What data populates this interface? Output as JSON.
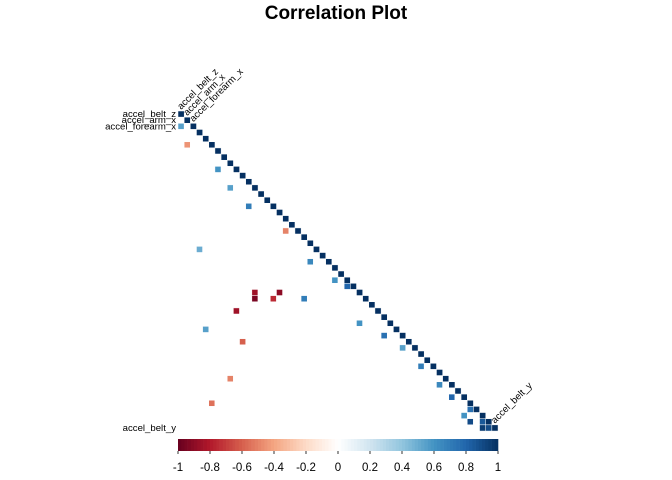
{
  "chart_data": {
    "type": "heatmap",
    "title": "Correlation Plot",
    "variables": [
      "accel_belt_z",
      "accel_arm_x",
      "accel_forearm_x",
      "",
      "",
      "",
      "",
      "",
      "",
      "",
      "",
      "",
      "",
      "",
      "",
      "",
      "",
      "",
      "",
      "",
      "",
      "",
      "",
      "",
      "",
      "",
      "",
      "",
      "",
      "",
      "",
      "",
      "",
      "",
      "",
      "",
      "",
      "",
      "",
      "",
      "",
      "",
      "",
      "",
      "",
      "",
      "",
      "",
      "",
      "",
      "",
      "accel_belt_y"
    ],
    "strong_correlations": [
      {
        "a": 2,
        "b": 0,
        "value": 0.55
      },
      {
        "a": 5,
        "b": 1,
        "value": -0.45
      },
      {
        "a": 9,
        "b": 6,
        "value": 0.6
      },
      {
        "a": 12,
        "b": 8,
        "value": 0.55
      },
      {
        "a": 15,
        "b": 11,
        "value": 0.7
      },
      {
        "a": 19,
        "b": 17,
        "value": -0.5
      },
      {
        "a": 24,
        "b": 21,
        "value": 0.65
      },
      {
        "a": 27,
        "b": 25,
        "value": 0.6
      },
      {
        "a": 28,
        "b": 27,
        "value": 0.8
      },
      {
        "a": 29,
        "b": 12,
        "value": -0.85
      },
      {
        "a": 29,
        "b": 16,
        "value": -0.9
      },
      {
        "a": 30,
        "b": 12,
        "value": -0.95
      },
      {
        "a": 30,
        "b": 15,
        "value": -0.75
      },
      {
        "a": 30,
        "b": 20,
        "value": 0.7
      },
      {
        "a": 32,
        "b": 9,
        "value": -0.85
      },
      {
        "a": 34,
        "b": 29,
        "value": 0.6
      },
      {
        "a": 36,
        "b": 33,
        "value": 0.75
      },
      {
        "a": 38,
        "b": 36,
        "value": 0.55
      },
      {
        "a": 41,
        "b": 39,
        "value": 0.7
      },
      {
        "a": 44,
        "b": 42,
        "value": 0.65
      },
      {
        "a": 46,
        "b": 44,
        "value": 0.8
      },
      {
        "a": 48,
        "b": 47,
        "value": 0.75
      },
      {
        "a": 49,
        "b": 46,
        "value": 0.6
      },
      {
        "a": 50,
        "b": 47,
        "value": 0.9
      },
      {
        "a": 50,
        "b": 49,
        "value": 0.85
      },
      {
        "a": 51,
        "b": 49,
        "value": 0.95
      },
      {
        "a": 51,
        "b": 50,
        "value": 0.9
      },
      {
        "a": 37,
        "b": 10,
        "value": -0.6
      },
      {
        "a": 35,
        "b": 4,
        "value": 0.55
      },
      {
        "a": 22,
        "b": 3,
        "value": 0.5
      },
      {
        "a": 43,
        "b": 8,
        "value": -0.5
      },
      {
        "a": 47,
        "b": 5,
        "value": -0.55
      }
    ],
    "colorbar": {
      "range": [
        -1,
        1
      ],
      "ticks": [
        "-1",
        "-0.8",
        "-0.6",
        "-0.4",
        "-0.2",
        "0",
        "0.2",
        "0.4",
        "0.6",
        "0.8",
        "1"
      ],
      "colors": [
        "#67001f",
        "#b2182b",
        "#d6604d",
        "#f4a582",
        "#fddbc7",
        "#ffffff",
        "#d1e5f0",
        "#92c5de",
        "#4393c3",
        "#2166ac",
        "#053061"
      ]
    },
    "layout": "lower-triangle",
    "grid": true,
    "legend": "bottom"
  }
}
